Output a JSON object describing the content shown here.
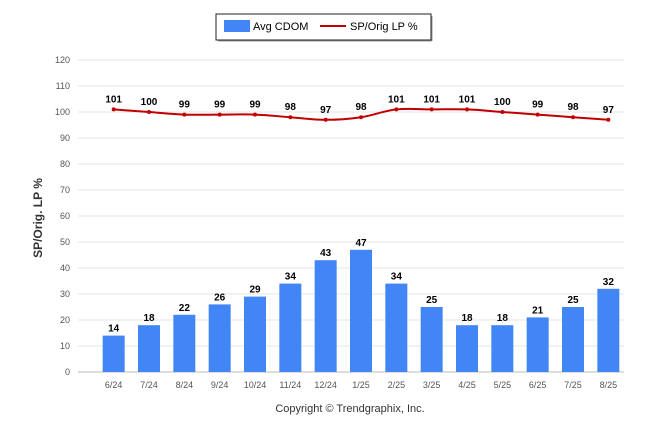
{
  "chart_data": {
    "type": "bar",
    "categories": [
      "6/24",
      "7/24",
      "8/24",
      "9/24",
      "10/24",
      "11/24",
      "12/24",
      "1/25",
      "2/25",
      "3/25",
      "4/25",
      "5/25",
      "6/25",
      "7/25",
      "8/25"
    ],
    "series": [
      {
        "name": "Avg CDOM",
        "type": "bar",
        "color": "#4285f4",
        "values": [
          14,
          18,
          22,
          26,
          29,
          34,
          43,
          47,
          34,
          25,
          18,
          18,
          21,
          25,
          32
        ]
      },
      {
        "name": "SP/Orig LP %",
        "type": "line",
        "color": "#c00000",
        "values": [
          101,
          100,
          99,
          99,
          99,
          98,
          97,
          98,
          101,
          101,
          101,
          100,
          99,
          98,
          97
        ]
      }
    ],
    "title": "",
    "xlabel": "",
    "ylabel": "SP/Orig. LP %",
    "ylim": [
      0,
      120
    ],
    "yticks": [
      0,
      10,
      20,
      30,
      40,
      50,
      60,
      70,
      80,
      90,
      100,
      110,
      120
    ],
    "grid": true,
    "legend_position": "top-center"
  },
  "footer": {
    "copyright": "Copyright © Trendgraphix, Inc."
  }
}
